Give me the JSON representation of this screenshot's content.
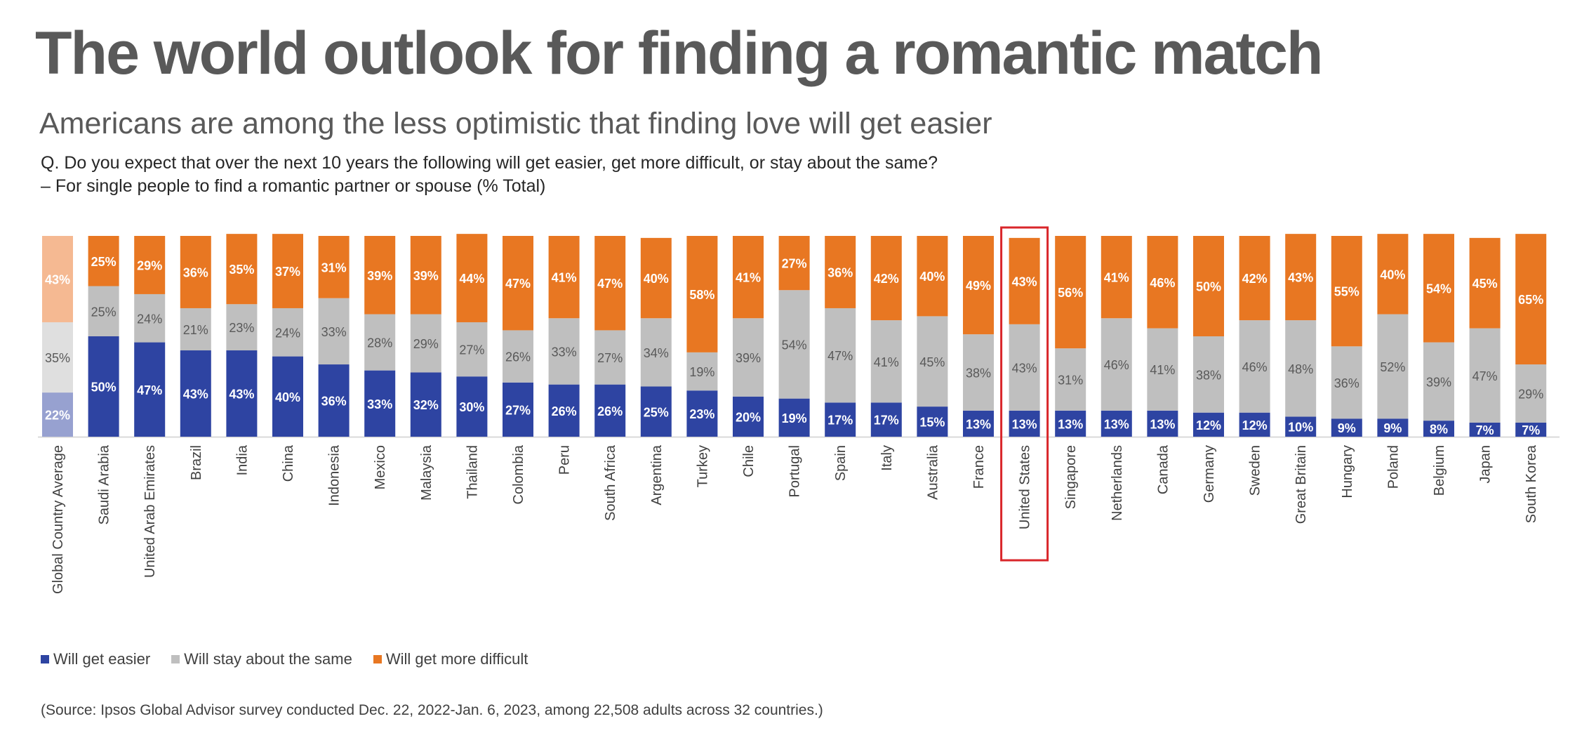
{
  "title": "The world outlook for finding a romantic match",
  "subtitle": "Americans are among the less optimistic that finding love will get easier",
  "question_line1": "Q. Do you expect that over the next 10 years the following will get easier, get more difficult, or stay about the same?",
  "question_line2": "– For single people to find a romantic partner or spouse (% Total)",
  "source": "(Source: Ipsos Global Advisor survey conducted Dec. 22, 2022-Jan. 6, 2023, among 22,508 adults across 32 countries.)",
  "colors": {
    "easier": "#2E44A2",
    "same": "#BFBFBF",
    "difficult": "#E87722",
    "easier_light": "#97A1D0",
    "same_light": "#DFDFDF",
    "difficult_light": "#F5B992",
    "highlight": "#D9262A"
  },
  "chart_data": {
    "type": "bar",
    "stacked": true,
    "percent_labels": true,
    "highlighted_category": "United States",
    "categories": [
      "Global Country Average",
      "Saudi Arabia",
      "United Arab Emirates",
      "Brazil",
      "India",
      "China",
      "Indonesia",
      "Mexico",
      "Malaysia",
      "Thailand",
      "Colombia",
      "Peru",
      "South Africa",
      "Argentina",
      "Turkey",
      "Chile",
      "Portugal",
      "Spain",
      "Italy",
      "Australia",
      "France",
      "United States",
      "Singapore",
      "Netherlands",
      "Canada",
      "Germany",
      "Sweden",
      "Great Britain",
      "Hungary",
      "Poland",
      "Belgium",
      "Japan",
      "South Korea"
    ],
    "series": [
      {
        "name": "Will get easier",
        "values": [
          22,
          50,
          47,
          43,
          43,
          40,
          36,
          33,
          32,
          30,
          27,
          26,
          26,
          25,
          23,
          20,
          19,
          17,
          17,
          15,
          13,
          13,
          13,
          13,
          13,
          12,
          12,
          10,
          9,
          9,
          8,
          7,
          7
        ]
      },
      {
        "name": "Will stay about the same",
        "values": [
          35,
          25,
          24,
          21,
          23,
          24,
          33,
          28,
          29,
          27,
          26,
          33,
          27,
          34,
          19,
          39,
          54,
          47,
          41,
          45,
          38,
          43,
          31,
          46,
          41,
          38,
          46,
          48,
          36,
          52,
          39,
          47,
          29
        ]
      },
      {
        "name": "Will get more difficult",
        "values": [
          43,
          25,
          29,
          36,
          35,
          37,
          31,
          39,
          39,
          44,
          47,
          41,
          47,
          40,
          58,
          41,
          27,
          36,
          42,
          40,
          49,
          43,
          56,
          41,
          46,
          50,
          42,
          43,
          55,
          40,
          54,
          45,
          65
        ]
      }
    ],
    "ylim": [
      0,
      100
    ]
  }
}
